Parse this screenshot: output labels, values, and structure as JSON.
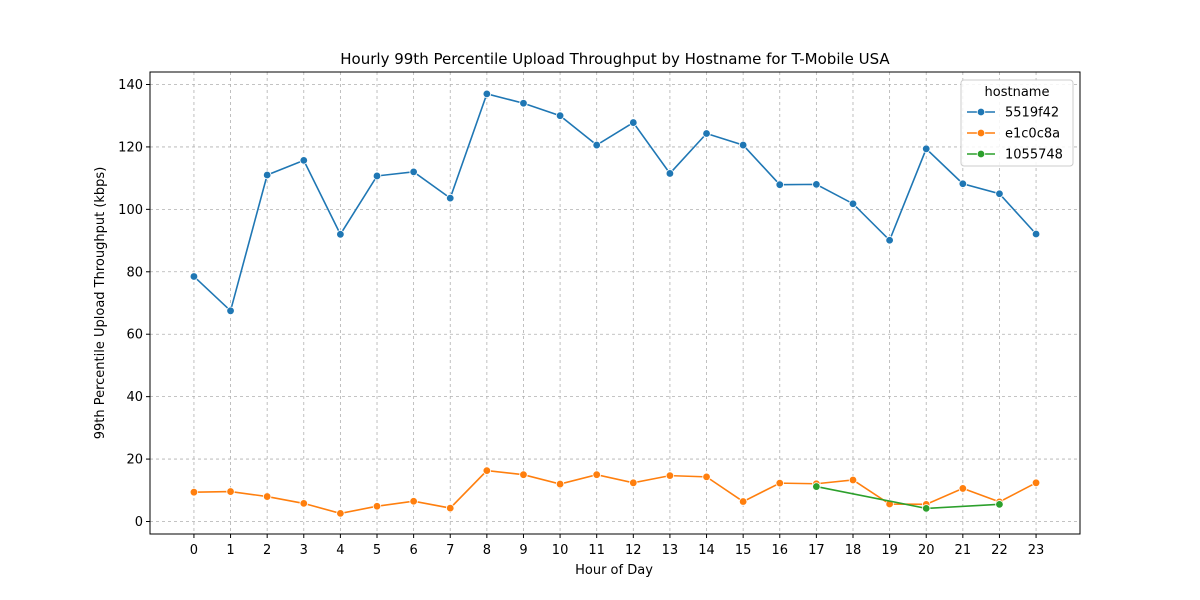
{
  "chart_data": {
    "type": "line",
    "title": "Hourly 99th Percentile Upload Throughput by Hostname for T-Mobile USA",
    "xlabel": "Hour of Day",
    "ylabel": "99th Percentile Upload Throughput (kbps)",
    "xlim": [
      -1.2,
      24.2
    ],
    "ylim": [
      -4,
      144
    ],
    "x_ticks": [
      0,
      1,
      2,
      3,
      4,
      5,
      6,
      7,
      8,
      9,
      10,
      11,
      12,
      13,
      14,
      15,
      16,
      17,
      18,
      19,
      20,
      21,
      22,
      23
    ],
    "y_ticks": [
      0,
      20,
      40,
      60,
      80,
      100,
      120,
      140
    ],
    "grid": true,
    "legend": {
      "title": "hostname",
      "position": "top-right"
    },
    "series": [
      {
        "name": "5519f42",
        "color": "#1f77b4",
        "x": [
          0,
          1,
          2,
          3,
          4,
          5,
          6,
          7,
          8,
          9,
          10,
          11,
          12,
          13,
          14,
          15,
          16,
          17,
          18,
          19,
          20,
          21,
          22,
          23
        ],
        "values": [
          78.5,
          67.5,
          111,
          115.7,
          92,
          110.7,
          112,
          103.6,
          137,
          134,
          130,
          120.6,
          127.8,
          111.5,
          124.3,
          120.6,
          107.9,
          108,
          101.8,
          90.1,
          119.4,
          108.2,
          105,
          92.1
        ]
      },
      {
        "name": "e1c0c8a",
        "color": "#ff7f0e",
        "x": [
          0,
          1,
          2,
          3,
          4,
          5,
          6,
          7,
          8,
          9,
          10,
          11,
          12,
          13,
          14,
          15,
          16,
          17,
          18,
          19,
          20,
          21,
          22,
          23
        ],
        "values": [
          9.4,
          9.6,
          8,
          5.8,
          2.6,
          4.9,
          6.5,
          4.3,
          16.3,
          15,
          12,
          15,
          12.4,
          14.7,
          14.3,
          6.4,
          12.3,
          12.1,
          13.3,
          5.6,
          5.5,
          10.6,
          6.3,
          12.4
        ]
      },
      {
        "name": "1055748",
        "color": "#2ca02c",
        "x": [
          17,
          20,
          22
        ],
        "values": [
          11.2,
          4.2,
          5.5
        ]
      }
    ]
  }
}
